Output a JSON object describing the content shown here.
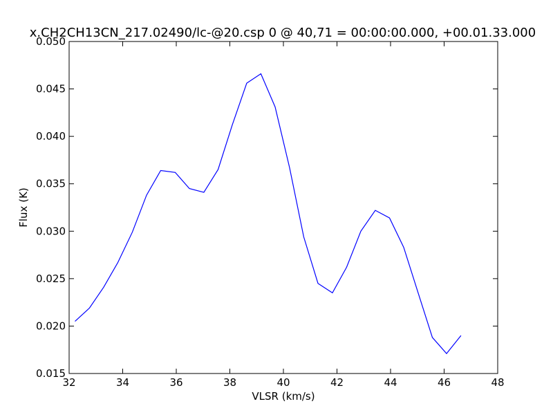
{
  "chart_data": {
    "type": "line",
    "title": "x.CH2CH13CN_217.02490/lc-@20.csp 0 @ 40,71 = 00:00:00.000, +00.01.33.000",
    "xlabel": "VLSR (km/s)",
    "ylabel": "Flux (K)",
    "xlim": [
      32,
      48
    ],
    "ylim": [
      0.015,
      0.05
    ],
    "xticks": [
      32,
      34,
      36,
      38,
      40,
      42,
      44,
      46,
      48
    ],
    "xtick_labels": [
      "32",
      "34",
      "36",
      "38",
      "40",
      "42",
      "44",
      "46",
      "48"
    ],
    "yticks": [
      0.015,
      0.02,
      0.025,
      0.03,
      0.035,
      0.04,
      0.045,
      0.05
    ],
    "ytick_labels": [
      "0.015",
      "0.020",
      "0.025",
      "0.030",
      "0.035",
      "0.040",
      "0.045",
      "0.050"
    ],
    "grid": false,
    "series_color": "#0000ff",
    "series": [
      {
        "x": [
          32.22,
          32.76,
          33.29,
          33.82,
          34.36,
          34.89,
          35.42,
          35.96,
          36.49,
          37.03,
          37.56,
          38.09,
          38.63,
          39.16,
          39.69,
          40.23,
          40.76,
          41.29,
          41.83,
          42.36,
          42.89,
          43.43,
          43.96,
          44.49,
          45.03,
          45.56,
          46.09,
          46.63
        ],
        "y": [
          0.0205,
          0.0219,
          0.0241,
          0.0267,
          0.0299,
          0.0338,
          0.0364,
          0.0362,
          0.0345,
          0.0341,
          0.0365,
          0.0412,
          0.0456,
          0.0466,
          0.0431,
          0.0367,
          0.0294,
          0.0245,
          0.0235,
          0.0262,
          0.03,
          0.0322,
          0.0314,
          0.0283,
          0.0235,
          0.0188,
          0.0171,
          0.019
        ]
      }
    ]
  }
}
